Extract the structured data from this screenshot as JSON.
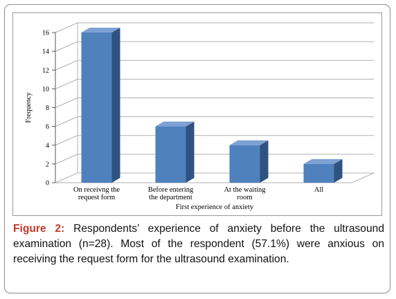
{
  "chart_data": {
    "type": "bar",
    "style": "3d-column",
    "categories": [
      [
        "On receivng the",
        "request form"
      ],
      [
        "Before entering",
        "the department"
      ],
      [
        "At the waiting",
        "room"
      ],
      [
        "All"
      ]
    ],
    "values": [
      16,
      6,
      4,
      2
    ],
    "xlabel": "First experience of anxiety",
    "ylabel": "Frequency",
    "ylim": [
      0,
      16
    ],
    "yticks": [
      "0",
      "2",
      "4",
      "6",
      "8",
      "10",
      "12",
      "14",
      "16"
    ],
    "grid": true,
    "legend": "none",
    "colors": {
      "bar_front": "#4f81bd",
      "bar_top": "#7ea1d3",
      "bar_side": "#2f5280",
      "gridline": "#b0b0b0"
    }
  },
  "caption": {
    "label": "Figure 2:",
    "text": " Respondents’ experience of anxiety before the ultrasound examination (n=28). Most of the respondent (57.1%) were anxious on receiving the request form for the ultrasound examination."
  }
}
